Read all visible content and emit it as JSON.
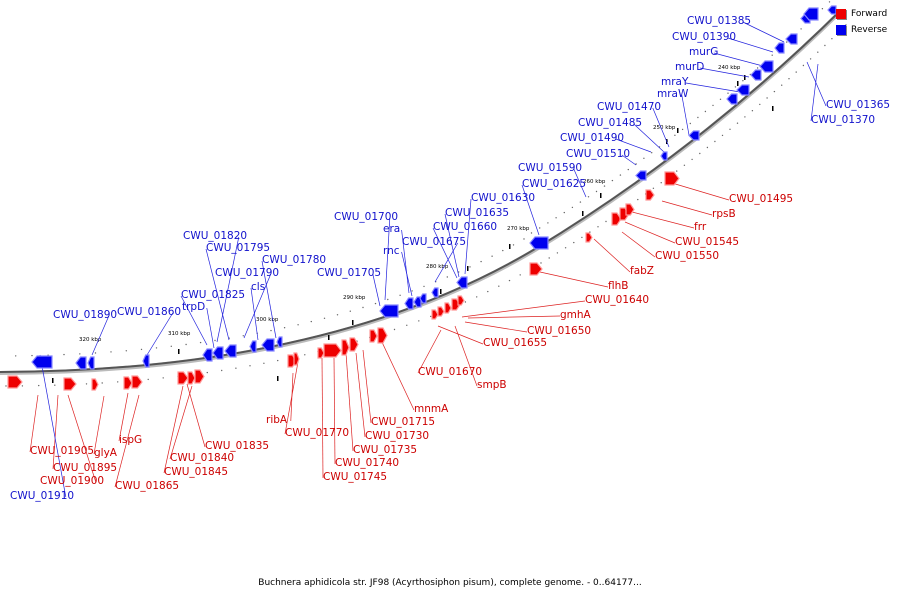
{
  "legend": [
    {
      "label": "Forward",
      "color": "#ee0000"
    },
    {
      "label": "Reverse",
      "color": "#0000ee"
    }
  ],
  "caption": "Buchnera aphidicola str. JF98 (Acyrthosiphon pisum), complete genome. - 0..64177...",
  "colors": {
    "forward": "#ee0000",
    "reverse": "#0000ee",
    "backbone": "#555555"
  },
  "scale_ticks": [
    "320 kbp",
    "310 kbp",
    "300 kbp",
    "290 kbp",
    "280 kbp",
    "270 kbp",
    "260 kbp",
    "250 kbp",
    "240 kbp"
  ],
  "forward_genes": [
    "CWU_01495",
    "rpsB",
    "frr",
    "CWU_01545",
    "CWU_01550",
    "fabZ",
    "flhB",
    "CWU_01640",
    "gmhA",
    "CWU_01650",
    "CWU_01655",
    "CWU_01670",
    "smpB",
    "mnmA",
    "CWU_01715",
    "CWU_01730",
    "CWU_01735",
    "CWU_01740",
    "CWU_01745",
    "CWU_01770",
    "ribA",
    "CWU_01835",
    "CWU_01840",
    "CWU_01845",
    "ispG",
    "CWU_01865",
    "glyA",
    "CWU_01900",
    "CWU_01895",
    "CWU_01905"
  ],
  "reverse_genes": [
    "CWU_01385",
    "CWU_01390",
    "murG",
    "murD",
    "mraY",
    "mraW",
    "CWU_01365",
    "CWU_01370",
    "CWU_01470",
    "CWU_01485",
    "CWU_01490",
    "CWU_01510",
    "CWU_01590",
    "CWU_01625",
    "CWU_01630",
    "CWU_01635",
    "CWU_01660",
    "CWU_01675",
    "CWU_01700",
    "era",
    "rnc",
    "CWU_01705",
    "CWU_01820",
    "CWU_01795",
    "CWU_01790",
    "cls",
    "CWU_01780",
    "CWU_01825",
    "trpD",
    "CWU_01860",
    "CWU_01890",
    "CWU_01910"
  ]
}
